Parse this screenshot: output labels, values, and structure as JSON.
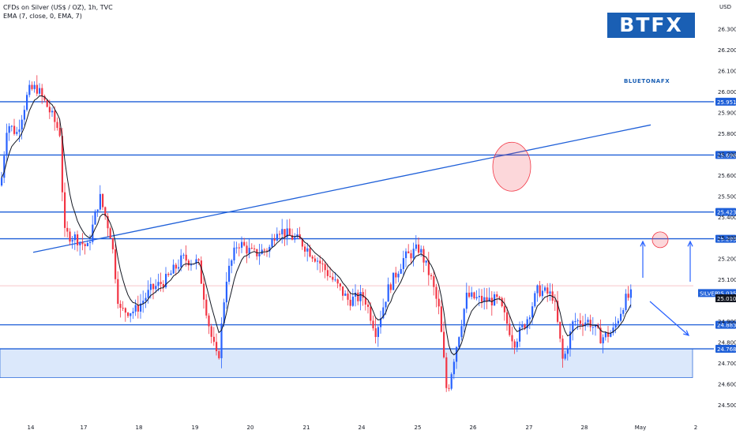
{
  "header": {
    "title": "CFDs on Silver (US$ / OZ), 1h, TVC",
    "indicator": "EMA (7, close, 0, EMA, 7)"
  },
  "logo": {
    "text": "BTFX",
    "small_text": "BLUETONAFX"
  },
  "colors": {
    "bull": "#2962ff",
    "bear": "#f23645",
    "level": "#1e5fd8",
    "ema": "#131722",
    "zone": "#dbe8fb"
  },
  "chart_data": {
    "type": "candlestick",
    "currency": "USD",
    "ylim": [
      24.45,
      26.35
    ],
    "y_ticks": [
      "26.300",
      "26.200",
      "26.100",
      "26.000",
      "25.900",
      "25.800",
      "25.700",
      "25.600",
      "25.500",
      "25.400",
      "25.300",
      "25.200",
      "25.100",
      "24.900",
      "24.800",
      "24.700",
      "24.600",
      "24.500"
    ],
    "x_ticks": [
      "14",
      "17",
      "18",
      "19",
      "20",
      "21",
      "24",
      "25",
      "26",
      "27",
      "28",
      "May",
      "2"
    ],
    "levels": [
      "25.951",
      "25.696",
      "25.423",
      "25.295",
      "24.883",
      "24.768"
    ],
    "last_price_label": "SILVER",
    "last_price": "25.035",
    "ema_value": "25.010",
    "support_zone": [
      24.63,
      24.768
    ],
    "trendline": {
      "start": 25.23,
      "end": 25.84
    },
    "highlight_circles": [
      25.64,
      25.29
    ]
  }
}
